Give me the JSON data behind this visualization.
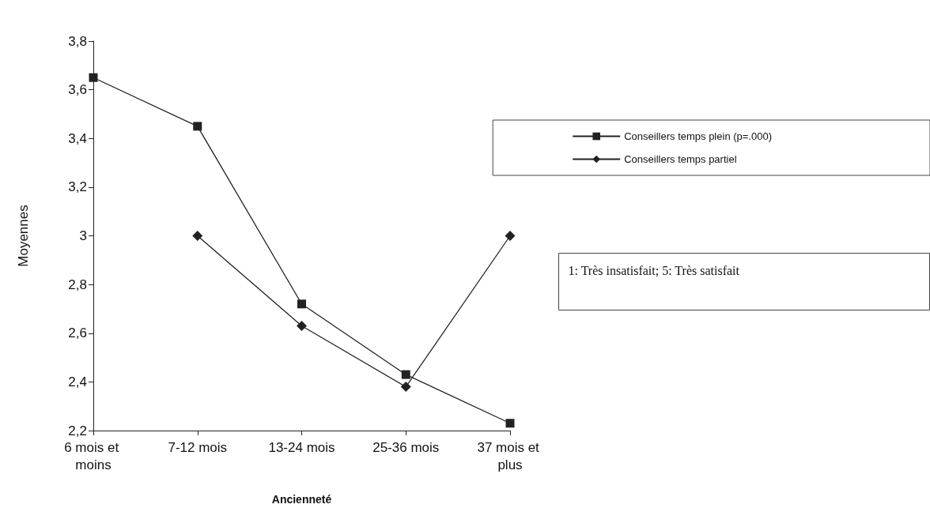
{
  "chart_data": {
    "type": "line",
    "xlabel": "Ancienneté",
    "ylabel": "Moyennes",
    "categories": [
      "6 mois et moins",
      "7-12 mois",
      "13-24 mois",
      "25-36 mois",
      "37 mois et plus"
    ],
    "series": [
      {
        "name": "Conseillers temps plein (p=.000)",
        "color": "#222222",
        "marker": "square",
        "values": [
          3.65,
          3.45,
          2.72,
          2.43,
          2.23
        ]
      },
      {
        "name": "Conseillers temps partiel",
        "color": "#222222",
        "marker": "diamond",
        "values": [
          null,
          3.0,
          2.63,
          2.38,
          3.0
        ]
      }
    ],
    "ylim": [
      2.2,
      3.8
    ],
    "yticks": [
      {
        "value": 2.2,
        "label": "2,2"
      },
      {
        "value": 2.4,
        "label": "2,4"
      },
      {
        "value": 2.6,
        "label": "2,6"
      },
      {
        "value": 2.8,
        "label": "2,8"
      },
      {
        "value": 3,
        "label": "3"
      },
      {
        "value": 3.2,
        "label": "3,2"
      },
      {
        "value": 3.4,
        "label": "3,4"
      },
      {
        "value": 3.6,
        "label": "3,6"
      },
      {
        "value": 3.8,
        "label": "3,8"
      }
    ],
    "grid": false,
    "legend": "right",
    "line_style": "solid",
    "annotations": [
      "1: Très insatisfait; 5: Très satisfait"
    ]
  }
}
